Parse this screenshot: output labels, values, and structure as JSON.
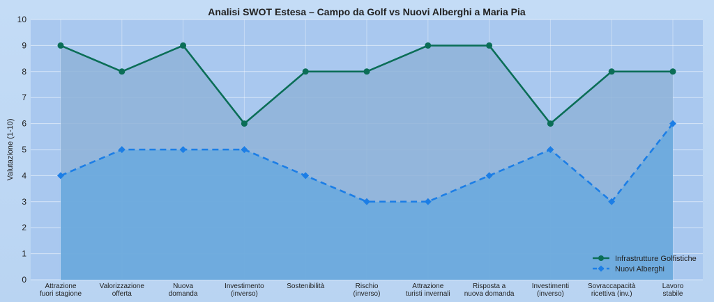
{
  "chart_data": {
    "type": "line",
    "title": "Analisi SWOT Estesa – Campo da Golf vs Nuovi Alberghi a Maria Pia",
    "xlabel": "",
    "ylabel": "Valutazione (1-10)",
    "ylim": [
      0,
      10
    ],
    "yticks": [
      "0",
      "1",
      "2",
      "3",
      "4",
      "5",
      "6",
      "7",
      "8",
      "9",
      "10"
    ],
    "categories": [
      [
        "Attrazione",
        "fuori stagione"
      ],
      [
        "Valorizzazione",
        "offerta"
      ],
      [
        "Nuova",
        "domanda"
      ],
      [
        "Investimento",
        "(inverso)"
      ],
      [
        "Sostenibilità"
      ],
      [
        "Rischio",
        "(inverso)"
      ],
      [
        "Attrazione",
        "turisti invernali"
      ],
      [
        "Risposta a",
        "nuova domanda"
      ],
      [
        "Investimenti",
        "(inverso)"
      ],
      [
        "Sovraccapacità",
        "ricettiva (inv.)"
      ],
      [
        "Lavoro",
        "stabile"
      ]
    ],
    "series": [
      {
        "name": "Infrastrutture Golfistiche",
        "values": [
          9,
          8,
          9,
          6,
          8,
          8,
          9,
          9,
          6,
          8,
          8
        ],
        "color": "#0b6e57",
        "marker": "circle",
        "dash": false
      },
      {
        "name": "Nuovi Alberghi",
        "values": [
          4,
          5,
          5,
          5,
          4,
          3,
          3,
          4,
          5,
          3,
          6
        ],
        "color": "#1c7ee6",
        "marker": "diamond",
        "dash": true
      }
    ],
    "grid": true,
    "legend": "bottom-right"
  }
}
